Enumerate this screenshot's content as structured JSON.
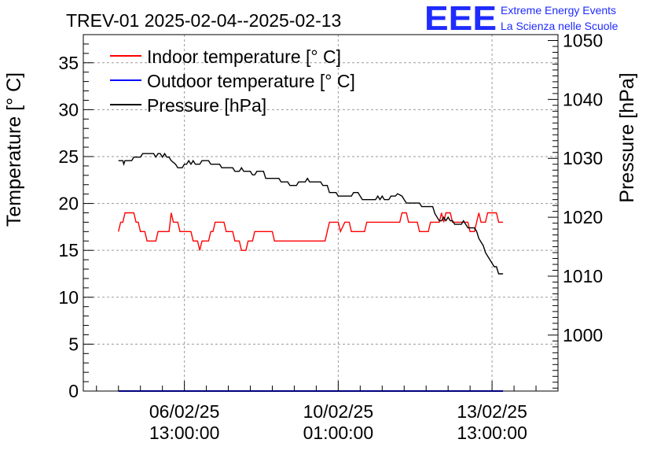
{
  "header": {
    "title": "TREV-01 2025-02-04--2025-02-13",
    "logo_text": "EEE",
    "brand_line1": "Extreme Energy Events",
    "brand_line2": "La Scienza nelle Scuole"
  },
  "colors": {
    "indoor": "#ff0000",
    "outdoor": "#0000ff",
    "pressure": "#000000",
    "logo": "#1f2bff",
    "grid": "#9a9a9a"
  },
  "chart_data": {
    "type": "line",
    "xlabels": [
      {
        "date": "06/02/25",
        "time": "13:00:00",
        "t": 1.5
      },
      {
        "date": "10/02/25",
        "time": "01:00:00",
        "t": 5.0
      },
      {
        "date": "13/02/25",
        "time": "13:00:00",
        "t": 8.5
      }
    ],
    "xlim": [
      -0.8,
      10.0
    ],
    "ylabel": "Temperature [° C]",
    "ylim": [
      0,
      38
    ],
    "yticks": [
      0,
      5,
      10,
      15,
      20,
      25,
      30,
      35
    ],
    "y2label": "Pressure [hPa]",
    "y2lim": [
      990.5,
      1051
    ],
    "y2ticks": [
      1000,
      1010,
      1020,
      1030,
      1040,
      1050
    ],
    "grid": true,
    "legend_position": "top-left",
    "series": [
      {
        "name": "Indoor temperature [° C]",
        "axis": "left",
        "points": [
          [
            0,
            17
          ],
          [
            0.05,
            18
          ],
          [
            0.1,
            18
          ],
          [
            0.15,
            19
          ],
          [
            0.35,
            19
          ],
          [
            0.4,
            18
          ],
          [
            0.45,
            18
          ],
          [
            0.5,
            17
          ],
          [
            0.6,
            17
          ],
          [
            0.65,
            16
          ],
          [
            0.85,
            16
          ],
          [
            0.9,
            17
          ],
          [
            1.15,
            17
          ],
          [
            1.2,
            19
          ],
          [
            1.25,
            18
          ],
          [
            1.35,
            18
          ],
          [
            1.4,
            17
          ],
          [
            1.65,
            17
          ],
          [
            1.7,
            16
          ],
          [
            1.8,
            16
          ],
          [
            1.85,
            15
          ],
          [
            1.9,
            16
          ],
          [
            2.05,
            16
          ],
          [
            2.1,
            17
          ],
          [
            2.15,
            17
          ],
          [
            2.2,
            18
          ],
          [
            2.4,
            18
          ],
          [
            2.45,
            17
          ],
          [
            2.6,
            17
          ],
          [
            2.65,
            16
          ],
          [
            2.75,
            16
          ],
          [
            2.8,
            15
          ],
          [
            2.9,
            15
          ],
          [
            2.95,
            16
          ],
          [
            3.05,
            16
          ],
          [
            3.1,
            17
          ],
          [
            3.5,
            17
          ],
          [
            3.55,
            16
          ],
          [
            4.7,
            16
          ],
          [
            4.75,
            17
          ],
          [
            4.8,
            18
          ],
          [
            5.0,
            18
          ],
          [
            5.05,
            17
          ],
          [
            5.15,
            18
          ],
          [
            5.25,
            18
          ],
          [
            5.3,
            17
          ],
          [
            5.6,
            17
          ],
          [
            5.65,
            18
          ],
          [
            6.4,
            18
          ],
          [
            6.45,
            19
          ],
          [
            6.55,
            19
          ],
          [
            6.6,
            18
          ],
          [
            6.8,
            18
          ],
          [
            6.85,
            17
          ],
          [
            7.05,
            17
          ],
          [
            7.1,
            18
          ],
          [
            7.3,
            18
          ],
          [
            7.35,
            19
          ],
          [
            7.4,
            18
          ],
          [
            7.45,
            19
          ],
          [
            7.55,
            19
          ],
          [
            7.6,
            18
          ],
          [
            7.95,
            18
          ],
          [
            8.0,
            17
          ],
          [
            8.1,
            17
          ],
          [
            8.15,
            18
          ],
          [
            8.2,
            19
          ],
          [
            8.25,
            18
          ],
          [
            8.35,
            18
          ],
          [
            8.4,
            19
          ],
          [
            8.6,
            19
          ],
          [
            8.65,
            18
          ],
          [
            8.75,
            18
          ]
        ]
      },
      {
        "name": "Outdoor temperature [° C]",
        "axis": "left",
        "points": [
          [
            0,
            0
          ],
          [
            8.75,
            0
          ]
        ]
      },
      {
        "name": "Pressure [hPa]",
        "axis": "right",
        "points": [
          [
            0,
            1029.6
          ],
          [
            0.1,
            1029.6
          ],
          [
            0.12,
            1029
          ],
          [
            0.15,
            1029.6
          ],
          [
            0.3,
            1029.6
          ],
          [
            0.35,
            1030.2
          ],
          [
            0.5,
            1030.2
          ],
          [
            0.55,
            1030.8
          ],
          [
            0.8,
            1030.8
          ],
          [
            0.85,
            1030.2
          ],
          [
            0.9,
            1030.8
          ],
          [
            0.95,
            1030.8
          ],
          [
            1.0,
            1030.2
          ],
          [
            1.05,
            1030.8
          ],
          [
            1.1,
            1030.2
          ],
          [
            1.15,
            1030.2
          ],
          [
            1.2,
            1029.6
          ],
          [
            1.3,
            1029
          ],
          [
            1.35,
            1028.4
          ],
          [
            1.45,
            1028.4
          ],
          [
            1.5,
            1029
          ],
          [
            1.55,
            1029
          ],
          [
            1.6,
            1029.6
          ],
          [
            1.65,
            1029
          ],
          [
            1.7,
            1029.6
          ],
          [
            1.75,
            1029
          ],
          [
            1.85,
            1029
          ],
          [
            1.9,
            1029.6
          ],
          [
            2.05,
            1029.6
          ],
          [
            2.1,
            1029
          ],
          [
            2.3,
            1029
          ],
          [
            2.35,
            1028.4
          ],
          [
            2.6,
            1028.4
          ],
          [
            2.65,
            1027.8
          ],
          [
            2.75,
            1027.8
          ],
          [
            2.8,
            1028.4
          ],
          [
            2.85,
            1027.8
          ],
          [
            3.0,
            1027.8
          ],
          [
            3.05,
            1027.2
          ],
          [
            3.1,
            1027.2
          ],
          [
            3.15,
            1027.8
          ],
          [
            3.3,
            1027.8
          ],
          [
            3.35,
            1026.6
          ],
          [
            3.65,
            1026.6
          ],
          [
            3.7,
            1026
          ],
          [
            3.85,
            1026
          ],
          [
            3.9,
            1025.4
          ],
          [
            4.05,
            1025.4
          ],
          [
            4.1,
            1026
          ],
          [
            4.25,
            1026
          ],
          [
            4.3,
            1026.6
          ],
          [
            4.35,
            1026
          ],
          [
            4.6,
            1026
          ],
          [
            4.65,
            1025.4
          ],
          [
            4.75,
            1025.4
          ],
          [
            4.8,
            1024.2
          ],
          [
            4.95,
            1024.2
          ],
          [
            5.0,
            1023.6
          ],
          [
            5.3,
            1023.6
          ],
          [
            5.35,
            1024.2
          ],
          [
            5.45,
            1024.2
          ],
          [
            5.5,
            1023.6
          ],
          [
            5.55,
            1023
          ],
          [
            5.85,
            1023
          ],
          [
            5.9,
            1023.6
          ],
          [
            5.95,
            1023
          ],
          [
            6.0,
            1023.6
          ],
          [
            6.05,
            1023
          ],
          [
            6.15,
            1023
          ],
          [
            6.2,
            1023.6
          ],
          [
            6.3,
            1023.6
          ],
          [
            6.35,
            1024
          ],
          [
            6.45,
            1023.6
          ],
          [
            6.5,
            1023
          ],
          [
            6.55,
            1022.4
          ],
          [
            6.85,
            1022.4
          ],
          [
            6.9,
            1021.8
          ],
          [
            7.15,
            1021.8
          ],
          [
            7.2,
            1020.6
          ],
          [
            7.3,
            1019.4
          ],
          [
            7.35,
            1019.4
          ],
          [
            7.4,
            1020
          ],
          [
            7.45,
            1019.4
          ],
          [
            7.5,
            1020
          ],
          [
            7.55,
            1019.4
          ],
          [
            7.6,
            1019.4
          ],
          [
            7.65,
            1018.8
          ],
          [
            7.8,
            1018.8
          ],
          [
            7.85,
            1019.4
          ],
          [
            7.9,
            1018.8
          ],
          [
            7.95,
            1018.2
          ],
          [
            8.1,
            1018.2
          ],
          [
            8.15,
            1017.6
          ],
          [
            8.2,
            1016.4
          ],
          [
            8.25,
            1015.8
          ],
          [
            8.3,
            1015.2
          ],
          [
            8.35,
            1014
          ],
          [
            8.4,
            1013.4
          ],
          [
            8.45,
            1012.8
          ],
          [
            8.5,
            1012.2
          ],
          [
            8.55,
            1011.6
          ],
          [
            8.6,
            1011.6
          ],
          [
            8.65,
            1010.4
          ],
          [
            8.75,
            1010.4
          ]
        ]
      }
    ]
  }
}
